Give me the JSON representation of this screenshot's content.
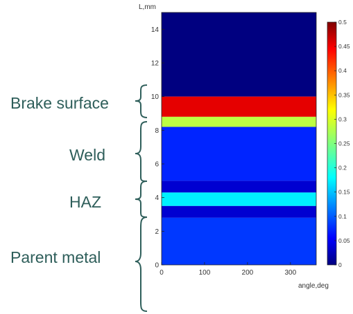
{
  "chart_data": {
    "type": "heatmap",
    "xlabel": "angle,deg",
    "ylabel": "L,mm",
    "xlim": [
      0,
      360
    ],
    "ylim": [
      0,
      15
    ],
    "x_ticks": [
      "0",
      "100",
      "200",
      "300"
    ],
    "y_ticks": [
      "0",
      "2",
      "4",
      "6",
      "8",
      "10",
      "12",
      "14"
    ],
    "colorbar": {
      "range": [
        0,
        0.5
      ],
      "colormap": "jet",
      "ticks": [
        "0",
        "0.05",
        "0.1",
        "0.15",
        "0.2",
        "0.25",
        "0.3",
        "0.35",
        "0.4",
        "0.45",
        "0.5"
      ]
    },
    "bands": [
      {
        "from": 10,
        "to": 15,
        "value": 0.0
      },
      {
        "from": 8.8,
        "to": 10,
        "value": 0.45
      },
      {
        "from": 8.2,
        "to": 8.8,
        "value": 0.28
      },
      {
        "from": 5.0,
        "to": 8.2,
        "value": 0.08
      },
      {
        "from": 4.3,
        "to": 5.0,
        "value": 0.04
      },
      {
        "from": 3.5,
        "to": 4.3,
        "value": 0.18
      },
      {
        "from": 2.8,
        "to": 3.5,
        "value": 0.04
      },
      {
        "from": 0,
        "to": 2.8,
        "value": 0.09
      }
    ],
    "zones": [
      "Brake surface",
      "Weld",
      "HAZ",
      "Parent metal"
    ]
  },
  "colors": {
    "label": "#2e5e5a",
    "background": "#ffffff"
  }
}
